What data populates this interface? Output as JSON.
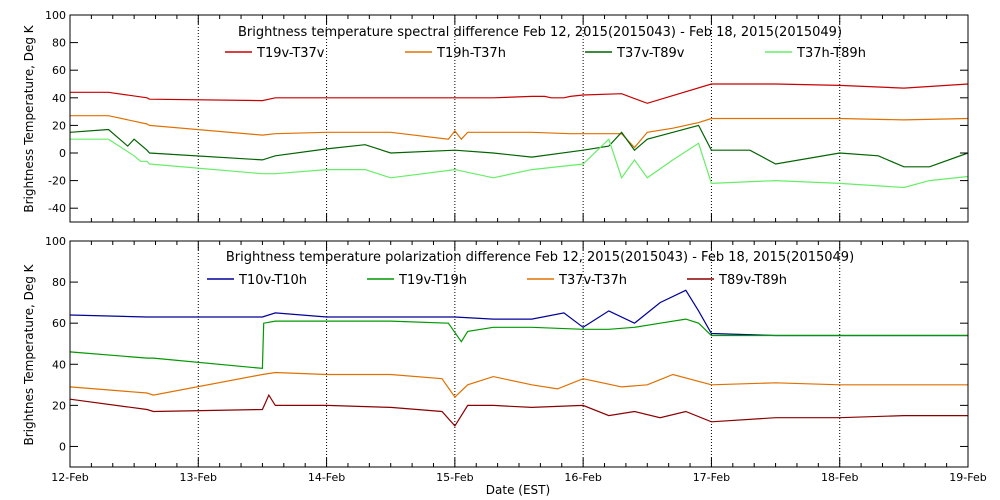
{
  "chart_data": [
    {
      "type": "line",
      "title": "Brightness temperature spectral difference    Feb 12, 2015(2015043) - Feb 18, 2015(2015049)",
      "ylabel": "Brightness Temperature, Deg K",
      "xlabel": "",
      "ylim": [
        -50,
        100
      ],
      "yticks": [
        -40,
        -20,
        0,
        20,
        40,
        60,
        80,
        100
      ],
      "xlim": [
        0,
        7
      ],
      "grid": true,
      "legend_position": "top",
      "series": [
        {
          "name": "T19v-T37v",
          "color": "#c80000",
          "x": [
            0,
            0.3,
            0.6,
            0.62,
            1.5,
            1.6,
            2.0,
            2.5,
            3.0,
            3.3,
            3.6,
            3.7,
            3.75,
            3.85,
            3.9,
            4.0,
            4.3,
            4.5,
            5.0,
            5.5,
            6.0,
            6.5,
            7.0
          ],
          "y": [
            44,
            44,
            40,
            39,
            38,
            40,
            40,
            40,
            40,
            40,
            41,
            41,
            40,
            40,
            41,
            42,
            43,
            36,
            50,
            50,
            49,
            47,
            50
          ]
        },
        {
          "name": "T19h-T37h",
          "color": "#e07000",
          "x": [
            0,
            0.3,
            0.6,
            0.62,
            1.5,
            1.6,
            2.0,
            2.5,
            2.95,
            3.0,
            3.05,
            3.1,
            3.3,
            3.6,
            3.9,
            4.0,
            4.3,
            4.4,
            4.5,
            4.7,
            4.9,
            5.0,
            5.5,
            6.0,
            6.5,
            7.0
          ],
          "y": [
            27,
            27,
            21,
            20,
            13,
            14,
            15,
            15,
            10,
            16,
            10,
            15,
            15,
            15,
            14,
            14,
            14,
            4,
            15,
            18,
            22,
            25,
            25,
            25,
            24,
            25
          ]
        },
        {
          "name": "T37v-T89v",
          "color": "#006400",
          "x": [
            0,
            0.3,
            0.45,
            0.5,
            0.6,
            0.62,
            1.5,
            1.6,
            2.0,
            2.3,
            2.5,
            3.0,
            3.3,
            3.6,
            4.0,
            4.2,
            4.3,
            4.4,
            4.5,
            4.7,
            4.9,
            5.0,
            5.3,
            5.5,
            6.0,
            6.3,
            6.5,
            6.7,
            7.0
          ],
          "y": [
            15,
            17,
            5,
            10,
            2,
            0,
            -5,
            -2,
            3,
            6,
            0,
            2,
            0,
            -3,
            2,
            5,
            15,
            2,
            10,
            15,
            20,
            2,
            2,
            -8,
            0,
            -2,
            -10,
            -10,
            0
          ]
        },
        {
          "name": "T37h-T89h",
          "color": "#66ee66",
          "x": [
            0,
            0.3,
            0.5,
            0.55,
            0.6,
            0.62,
            1.5,
            1.6,
            2.0,
            2.3,
            2.5,
            3.0,
            3.3,
            3.6,
            4.0,
            4.2,
            4.3,
            4.4,
            4.5,
            4.7,
            4.9,
            5.0,
            5.5,
            6.0,
            6.5,
            6.7,
            7.0
          ],
          "y": [
            10,
            10,
            -2,
            -6,
            -6,
            -8,
            -15,
            -15,
            -12,
            -12,
            -18,
            -12,
            -18,
            -12,
            -8,
            10,
            -18,
            -5,
            -18,
            -5,
            7,
            -22,
            -20,
            -22,
            -25,
            -20,
            -17
          ]
        }
      ]
    },
    {
      "type": "line",
      "title": "Brightness temperature polarization difference    Feb 12, 2015(2015043) - Feb 18, 2015(2015049)",
      "ylabel": "Brightnes Temperature, Deg K",
      "xlabel": "Date (EST)",
      "ylim": [
        -10,
        100
      ],
      "yticks": [
        0,
        20,
        40,
        60,
        80,
        100
      ],
      "xlim": [
        0,
        7
      ],
      "grid": true,
      "legend_position": "top",
      "categories": [
        "12-Feb",
        "13-Feb",
        "14-Feb",
        "15-Feb",
        "16-Feb",
        "17-Feb",
        "18-Feb",
        "19-Feb"
      ],
      "series": [
        {
          "name": "T10v-T10h",
          "color": "#000099",
          "x": [
            0,
            0.6,
            0.65,
            1.5,
            1.6,
            2.0,
            2.5,
            3.0,
            3.3,
            3.6,
            3.85,
            4.0,
            4.2,
            4.4,
            4.6,
            4.8,
            4.9,
            5.0,
            5.5,
            6.0,
            6.5,
            7.0
          ],
          "y": [
            64,
            63,
            63,
            63,
            65,
            63,
            63,
            63,
            62,
            62,
            65,
            58,
            66,
            60,
            70,
            76,
            66,
            55,
            54,
            54,
            54,
            54
          ]
        },
        {
          "name": "T19v-T19h",
          "color": "#009900",
          "x": [
            0,
            0.6,
            0.65,
            1.5,
            1.51,
            1.6,
            2.0,
            2.5,
            2.95,
            3.05,
            3.1,
            3.3,
            3.6,
            4.0,
            4.2,
            4.4,
            4.6,
            4.8,
            4.9,
            5.0,
            5.5,
            6.0,
            6.5,
            7.0
          ],
          "y": [
            46,
            43,
            43,
            38,
            60,
            61,
            61,
            61,
            60,
            51,
            56,
            58,
            58,
            57,
            57,
            58,
            60,
            62,
            60,
            54,
            54,
            54,
            54,
            54
          ]
        },
        {
          "name": "T37v-T37h",
          "color": "#e07000",
          "x": [
            0,
            0.6,
            0.65,
            1.5,
            1.6,
            2.0,
            2.5,
            2.9,
            3.0,
            3.1,
            3.3,
            3.6,
            3.8,
            4.0,
            4.3,
            4.5,
            4.7,
            5.0,
            5.5,
            6.0,
            6.5,
            7.0
          ],
          "y": [
            29,
            26,
            25,
            35,
            36,
            35,
            35,
            33,
            24,
            30,
            34,
            30,
            28,
            33,
            29,
            30,
            35,
            30,
            31,
            30,
            30,
            30
          ]
        },
        {
          "name": "T89v-T89h",
          "color": "#8b0000",
          "x": [
            0,
            0.6,
            0.65,
            1.5,
            1.55,
            1.6,
            2.0,
            2.5,
            2.9,
            3.0,
            3.1,
            3.3,
            3.6,
            4.0,
            4.2,
            4.4,
            4.6,
            4.8,
            5.0,
            5.5,
            6.0,
            6.5,
            7.0
          ],
          "y": [
            23,
            18,
            17,
            18,
            25,
            20,
            20,
            19,
            17,
            10,
            20,
            20,
            19,
            20,
            15,
            17,
            14,
            17,
            12,
            14,
            14,
            15,
            15
          ]
        }
      ]
    }
  ]
}
